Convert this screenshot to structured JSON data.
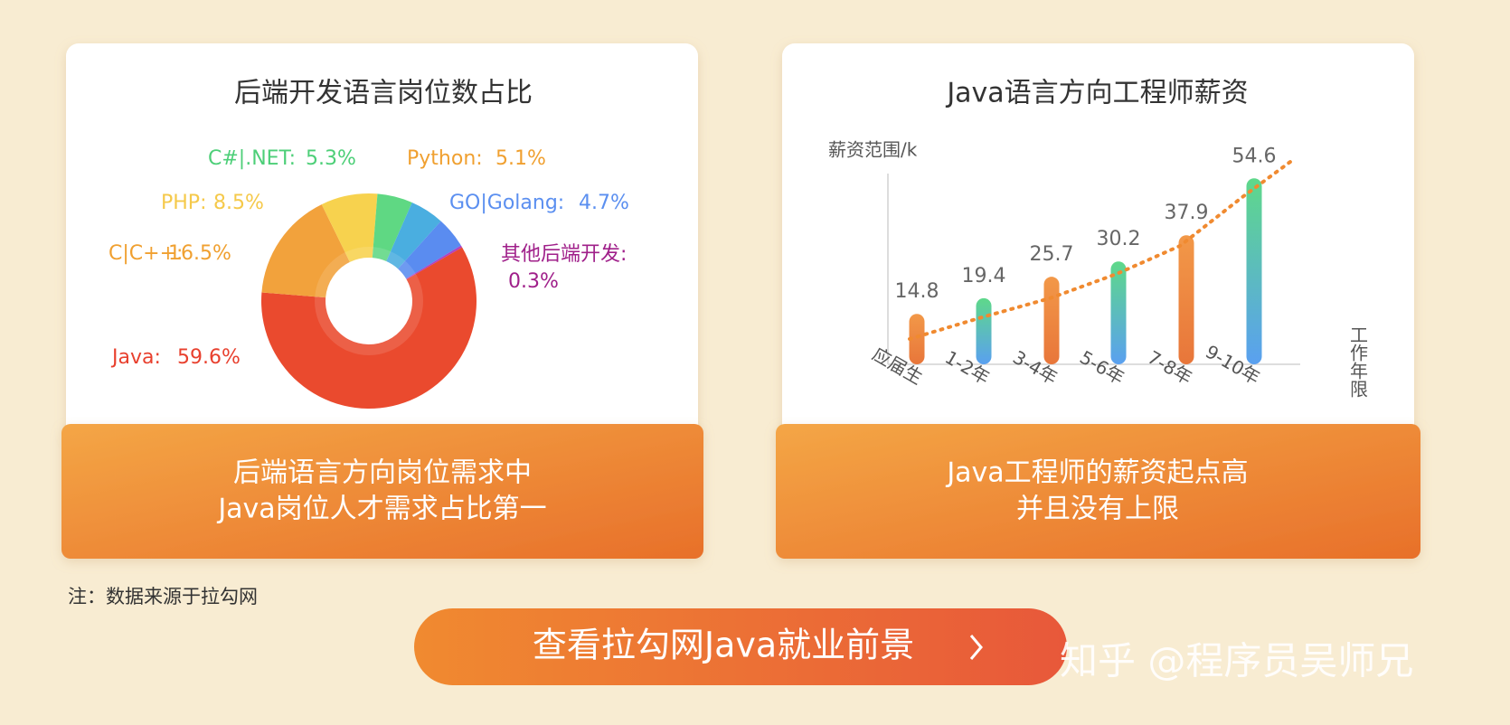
{
  "chart_data": [
    {
      "type": "pie",
      "title": "后端开发语言岗位数占比",
      "categories": [
        "Java:",
        "C|C++:",
        "PHP:",
        "C#|.NET:",
        "Python:",
        "GO|Golang:",
        "其他后端开发:"
      ],
      "values": [
        59.6,
        16.5,
        8.5,
        5.3,
        5.1,
        4.7,
        0.3
      ],
      "value_labels": [
        "59.6%",
        "16.5%",
        "8.5%",
        "5.3%",
        "5.1%",
        "4.7%",
        "0.3%"
      ],
      "colors": [
        "#ea4a2e",
        "#f2a23c",
        "#f7d24e",
        "#5fd883",
        "#4aaee0",
        "#5a8cf0",
        "#b040c0"
      ],
      "label_colors": [
        "#e8402e",
        "#f0a030",
        "#f5c94a",
        "#4dcf78",
        "#f0a030",
        "#5b8ff0",
        "#a0208a"
      ]
    },
    {
      "type": "bar",
      "title": "Java语言方向工程师薪资",
      "y_label": "薪资范围/k",
      "x_label": "工作年限",
      "categories": [
        "应届生",
        "1-2年",
        "3-4年",
        "5-6年",
        "7-8年",
        "9-10年"
      ],
      "values": [
        14.8,
        19.4,
        25.7,
        30.2,
        37.9,
        54.6
      ],
      "colors": [
        [
          "#f29848",
          "#e8763a"
        ],
        [
          "#5ed88a",
          "#5aa0f0"
        ],
        [
          "#f29848",
          "#e8763a"
        ],
        [
          "#5ed88a",
          "#5aa0f0"
        ],
        [
          "#f29848",
          "#e8763a"
        ],
        [
          "#5ed88a",
          "#5aa0f0"
        ]
      ],
      "ylim": [
        0,
        56
      ]
    }
  ],
  "captions": [
    [
      "后端语言方向岗位需求中",
      "Java岗位人才需求占比第一"
    ],
    [
      "Java工程师的薪资起点高",
      "并且没有上限"
    ]
  ],
  "note": "注：数据来源于拉勾网",
  "button": "查看拉勾网Java就业前景",
  "watermark": "知乎 @程序员吴师兄"
}
